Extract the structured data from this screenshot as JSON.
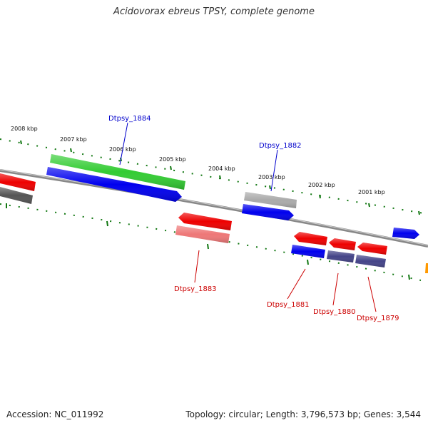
{
  "title": "Acidovorax ebreus TPSY, complete genome",
  "footer": {
    "accession": "Accession: NC_011992",
    "summary": "Topology: circular; Length: 3,796,573 bp; Genes: 3,544"
  },
  "ticks": [
    "2008 kbp",
    "2007 kbp",
    "2006 kbp",
    "2005 kbp",
    "2004 kbp",
    "2003 kbp",
    "2002 kbp",
    "2001 kbp"
  ],
  "gene_labels": {
    "g1884": "Dtpsy_1884",
    "g1882": "Dtpsy_1882",
    "g1883": "Dtpsy_1883",
    "g1881": "Dtpsy_1881",
    "g1880": "Dtpsy_1880",
    "g1879": "Dtpsy_1879"
  },
  "colors": {
    "blue": "#0000ee",
    "red": "#ee0000",
    "green": "#33cc33",
    "gray": "#aaaaaa",
    "darkgray": "#555555",
    "pink": "#ee7777",
    "slate": "#444488",
    "orange": "#ff9900",
    "tick": "#117711",
    "backbone": "#888888"
  }
}
